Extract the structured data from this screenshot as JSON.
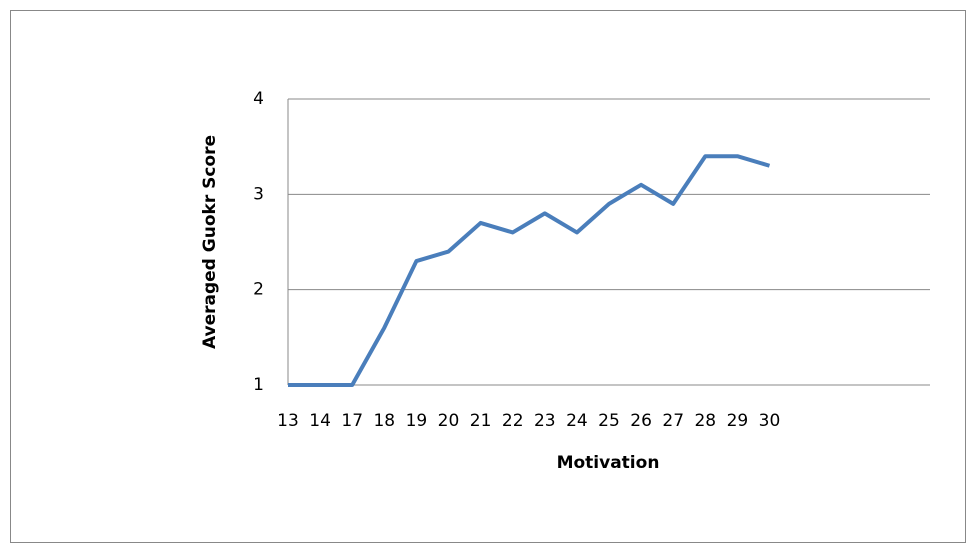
{
  "chart_data": {
    "type": "line",
    "x_label": "Motivation",
    "y_label": "Averaged Guokr Score",
    "categories": [
      "13",
      "14",
      "17",
      "18",
      "19",
      "20",
      "21",
      "22",
      "23",
      "24",
      "25",
      "26",
      "27",
      "28",
      "29",
      "30",
      null,
      null,
      null,
      null,
      null
    ],
    "series": [
      {
        "name": "Averaged Guokr Score",
        "color": "#4a7ebb",
        "values": [
          1,
          1,
          1,
          1.6,
          2.3,
          2.4,
          2.7,
          2.6,
          2.8,
          2.6,
          2.9,
          3.1,
          2.9,
          3.4,
          3.4,
          3.3,
          null,
          null,
          null,
          null,
          null
        ]
      }
    ],
    "ylim": [
      1,
      4
    ],
    "yticks": [
      1,
      2,
      3,
      4
    ],
    "grid": true
  }
}
